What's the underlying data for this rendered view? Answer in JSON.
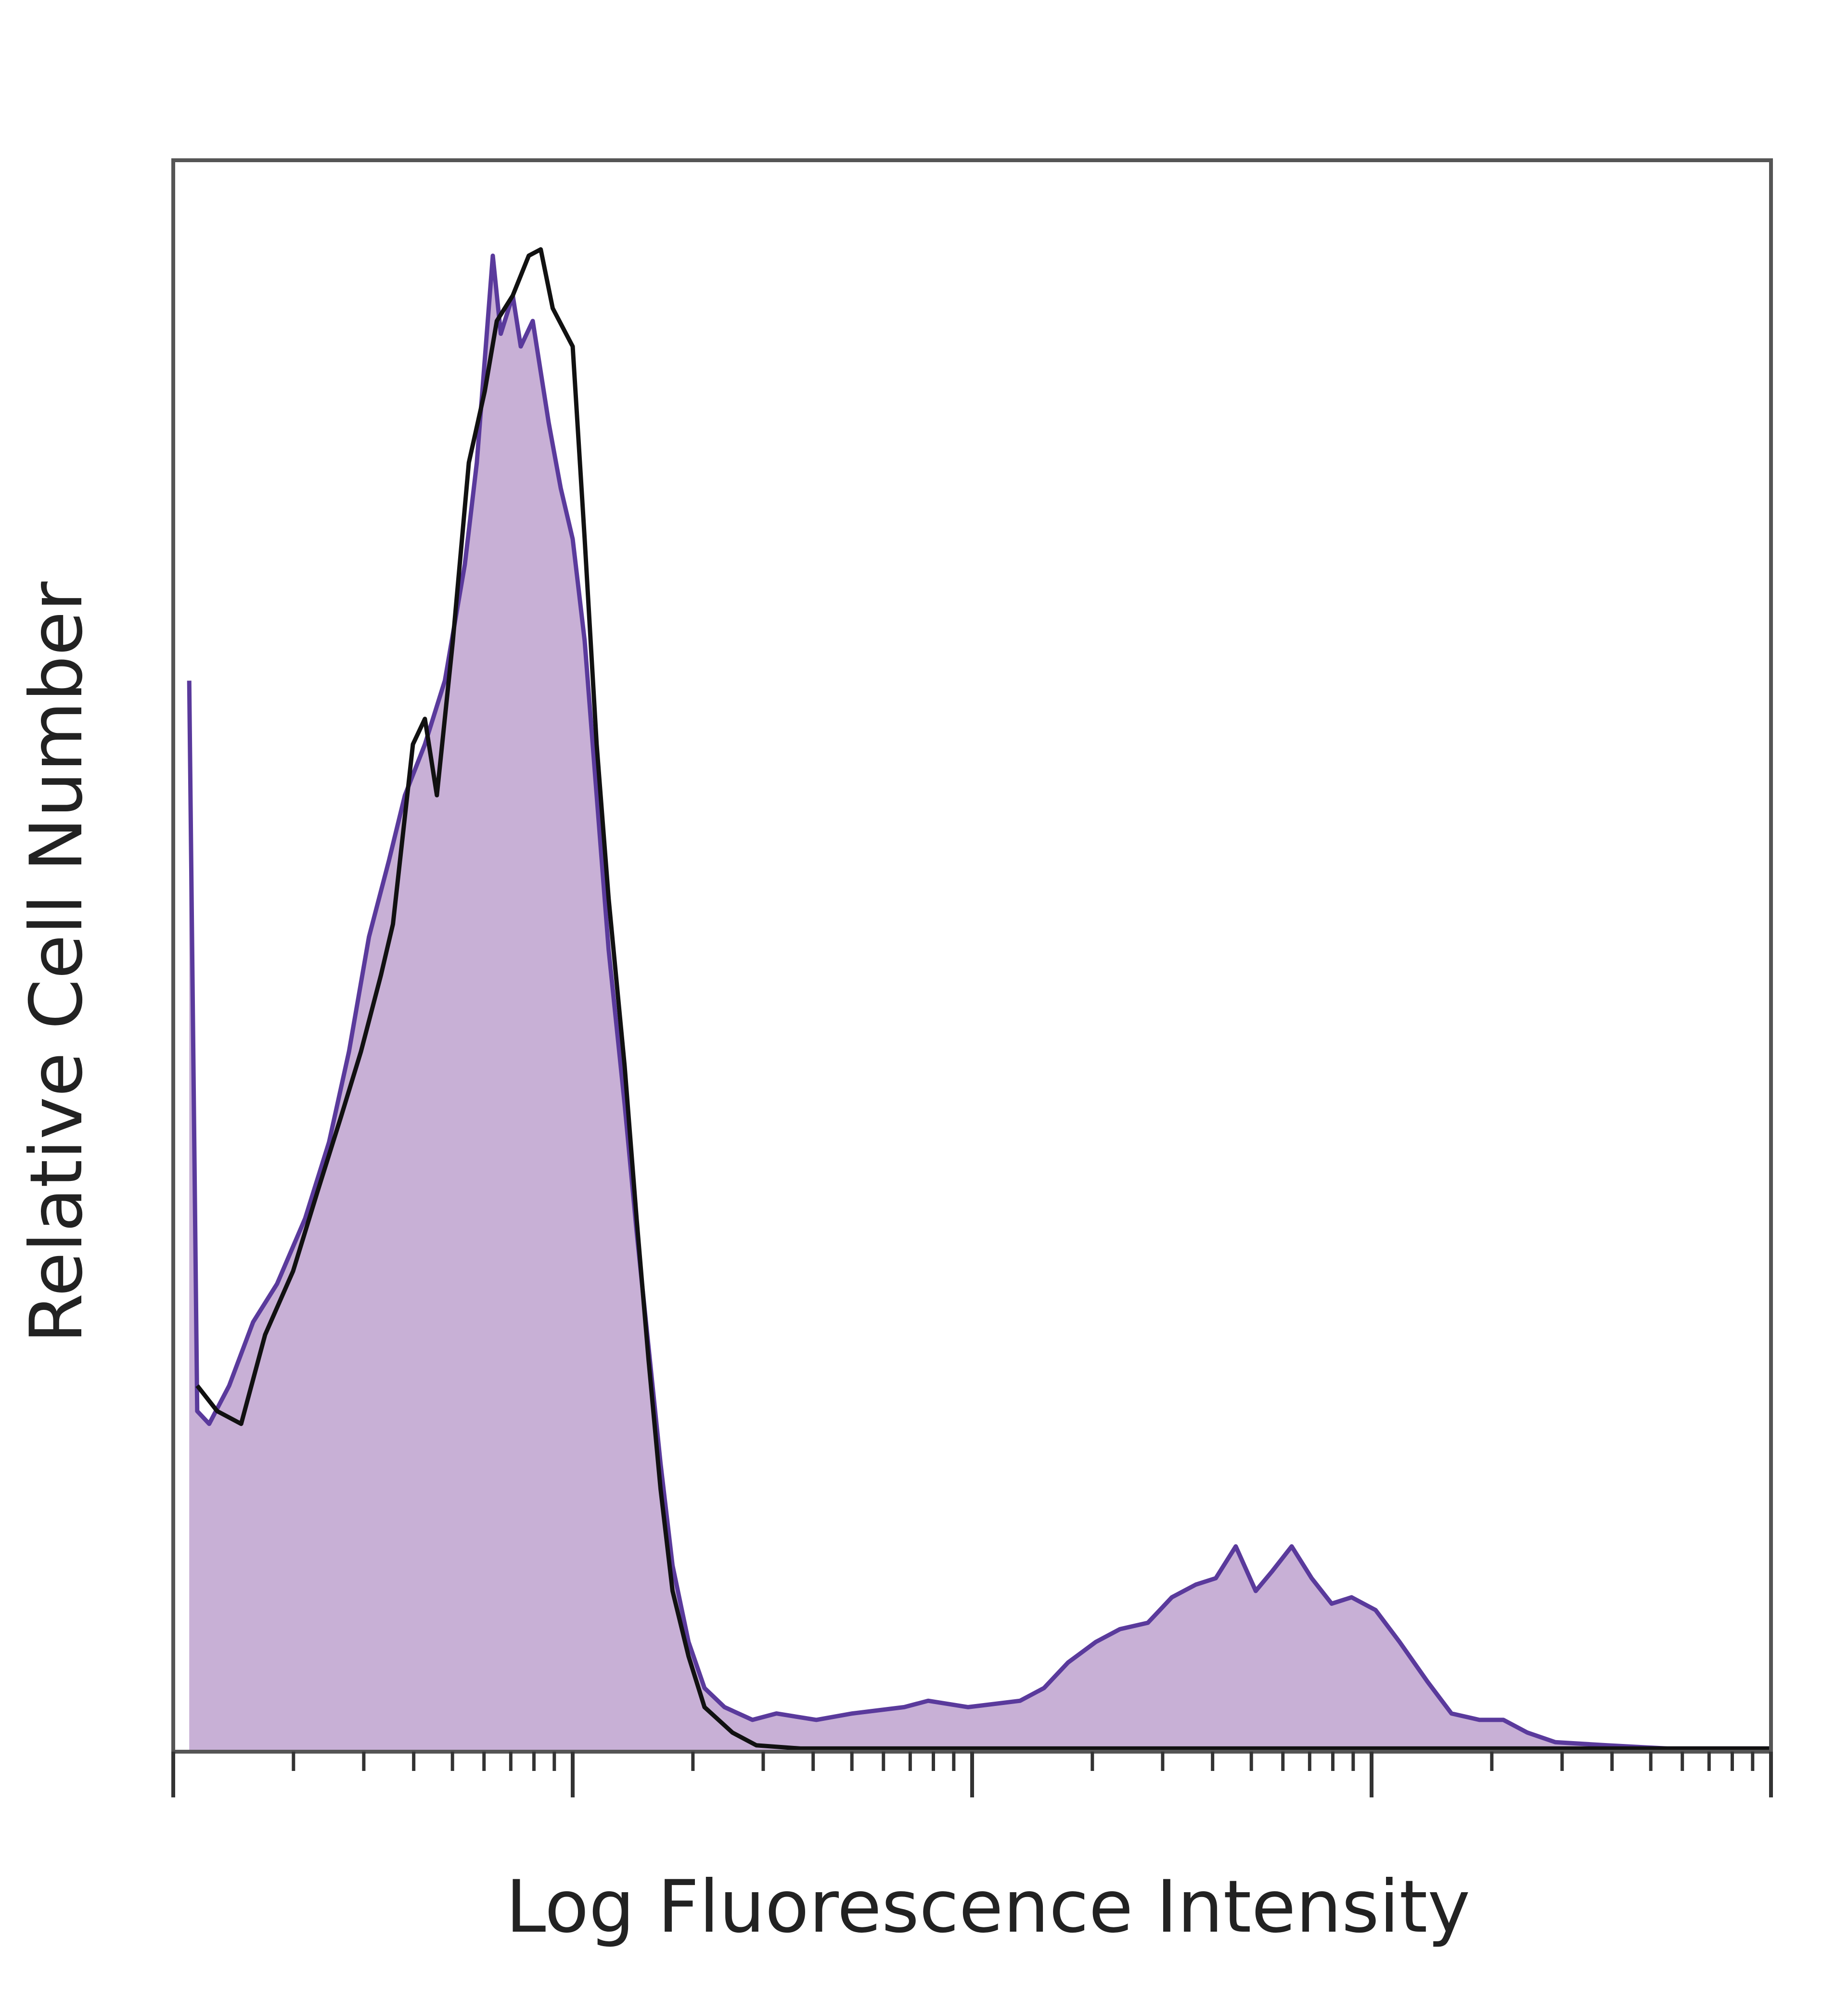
{
  "chart_data": {
    "type": "histogram-overlay",
    "xlabel": "Log Fluorescence Intensity",
    "ylabel": "Relative Cell Number",
    "xlim": [
      0,
      4
    ],
    "ylim": [
      0,
      100
    ],
    "xticks": [
      0,
      1,
      2,
      3,
      4
    ],
    "xticks_minor": [
      0.301,
      0.477,
      0.602,
      0.699,
      0.778,
      0.845,
      0.903,
      0.954,
      1.301,
      1.477,
      1.602,
      1.699,
      1.778,
      1.845,
      1.903,
      1.954,
      2.301,
      2.477,
      2.602,
      2.699,
      2.778,
      2.845,
      2.903,
      2.954,
      3.301,
      3.477,
      3.602,
      3.699,
      3.778,
      3.845,
      3.903,
      3.954
    ],
    "series": [
      {
        "color": "#5a3a9c",
        "fill": "#c8b0d6",
        "x": [
          0.04,
          0.06,
          0.09,
          0.14,
          0.2,
          0.26,
          0.33,
          0.39,
          0.44,
          0.49,
          0.54,
          0.58,
          0.63,
          0.68,
          0.73,
          0.76,
          0.78,
          0.8,
          0.82,
          0.85,
          0.87,
          0.9,
          0.94,
          0.97,
          1.0,
          1.03,
          1.06,
          1.09,
          1.13,
          1.16,
          1.19,
          1.22,
          1.25,
          1.29,
          1.33,
          1.38,
          1.45,
          1.51,
          1.61,
          1.7,
          1.83,
          1.89,
          1.99,
          2.12,
          2.18,
          2.24,
          2.31,
          2.37,
          2.44,
          2.5,
          2.56,
          2.61,
          2.66,
          2.71,
          2.75,
          2.8,
          2.85,
          2.9,
          2.95,
          3.01,
          3.07,
          3.14,
          3.2,
          3.27,
          3.33,
          3.39,
          3.46,
          3.59,
          3.74,
          4.0
        ],
        "values": [
          67.3,
          21.4,
          20.6,
          23.0,
          27.0,
          29.4,
          33.5,
          38.3,
          44.0,
          51.2,
          56.0,
          60.1,
          63.3,
          67.3,
          74.6,
          81.0,
          87.5,
          94.0,
          89.1,
          91.5,
          88.3,
          89.9,
          83.5,
          79.4,
          76.2,
          69.8,
          60.1,
          50.4,
          40.7,
          32.7,
          25.4,
          18.1,
          11.7,
          6.9,
          4.0,
          2.8,
          2.0,
          2.4,
          2.0,
          2.4,
          2.8,
          3.2,
          2.8,
          3.2,
          4.0,
          5.6,
          6.9,
          7.7,
          8.1,
          9.7,
          10.5,
          10.9,
          12.9,
          10.1,
          11.3,
          12.9,
          10.9,
          9.3,
          9.7,
          8.9,
          6.9,
          4.4,
          2.4,
          2.0,
          2.0,
          1.2,
          0.6,
          0.4,
          0.2,
          0.2
        ]
      },
      {
        "color": "#111111",
        "x": [
          0.06,
          0.11,
          0.17,
          0.23,
          0.3,
          0.36,
          0.42,
          0.47,
          0.52,
          0.55,
          0.6,
          0.63,
          0.66,
          0.7,
          0.74,
          0.78,
          0.81,
          0.85,
          0.89,
          0.92,
          0.95,
          1.0,
          1.03,
          1.06,
          1.09,
          1.13,
          1.16,
          1.19,
          1.22,
          1.25,
          1.29,
          1.33,
          1.4,
          1.46,
          1.57,
          4.0
        ],
        "values": [
          23.0,
          21.4,
          20.6,
          26.2,
          30.2,
          35.1,
          39.9,
          44.0,
          48.8,
          52.0,
          63.3,
          64.9,
          60.1,
          69.8,
          81.0,
          85.5,
          89.9,
          91.5,
          94.0,
          94.4,
          90.7,
          88.3,
          76.2,
          63.3,
          53.6,
          43.1,
          33.5,
          24.6,
          16.5,
          10.1,
          6.0,
          2.8,
          1.2,
          0.4,
          0.2,
          0.2
        ]
      }
    ]
  }
}
